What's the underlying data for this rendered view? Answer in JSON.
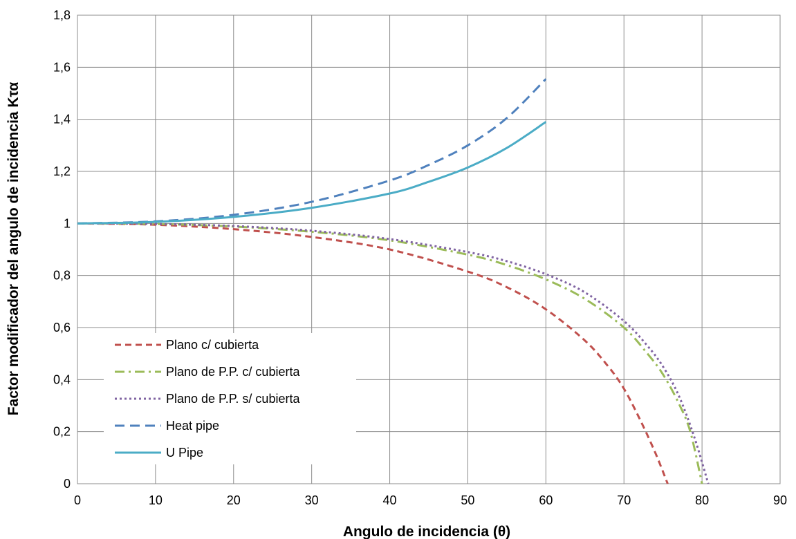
{
  "chart_data": {
    "type": "line",
    "xlabel": "Angulo de incidencia (θ)",
    "ylabel": "Factor modificador del angulo de incidencia Kτα",
    "xlim": [
      0,
      90
    ],
    "ylim": [
      0,
      1.8
    ],
    "x_ticks": [
      0,
      10,
      20,
      30,
      40,
      50,
      60,
      70,
      80,
      90
    ],
    "y_ticks": [
      0,
      0.2,
      0.4,
      0.6,
      0.8,
      1,
      1.2,
      1.4,
      1.6,
      1.8
    ],
    "x_tick_labels": [
      "0",
      "10",
      "20",
      "30",
      "40",
      "50",
      "60",
      "70",
      "80",
      "90"
    ],
    "y_tick_labels": [
      "0",
      "0,2",
      "0,4",
      "0,6",
      "0,8",
      "1",
      "1,2",
      "1,4",
      "1,6",
      "1,8"
    ],
    "grid": true,
    "legend_position": "bottom-left",
    "series": [
      {
        "name": "Plano c/ cubierta",
        "color": "#c0504d",
        "dash": "dash",
        "x": [
          0,
          10,
          20,
          30,
          40,
          50,
          55,
          60,
          65,
          68,
          70,
          72,
          74,
          75.6
        ],
        "y": [
          1.0,
          0.995,
          0.978,
          0.948,
          0.9,
          0.815,
          0.755,
          0.67,
          0.55,
          0.45,
          0.365,
          0.25,
          0.12,
          0.0
        ]
      },
      {
        "name": "Plano de P.P. c/ cubierta",
        "color": "#9bbb59",
        "dash": "dashdot",
        "x": [
          0,
          10,
          20,
          30,
          40,
          50,
          55,
          60,
          65,
          70,
          73,
          75,
          77,
          78.5,
          80
        ],
        "y": [
          1.0,
          0.998,
          0.988,
          0.968,
          0.935,
          0.88,
          0.84,
          0.785,
          0.71,
          0.6,
          0.5,
          0.42,
          0.31,
          0.2,
          0.0
        ]
      },
      {
        "name": "Plano de P.P. s/ cubierta",
        "color": "#8064a2",
        "dash": "dot",
        "x": [
          0,
          10,
          20,
          30,
          40,
          50,
          55,
          60,
          65,
          70,
          73,
          75,
          77,
          79,
          80.8
        ],
        "y": [
          1.0,
          0.998,
          0.99,
          0.972,
          0.94,
          0.89,
          0.855,
          0.805,
          0.735,
          0.625,
          0.53,
          0.45,
          0.34,
          0.18,
          0.0
        ]
      },
      {
        "name": "Heat pipe",
        "color": "#4f81bd",
        "dash": "longdash",
        "x": [
          0,
          10,
          20,
          30,
          40,
          45,
          50,
          55,
          60
        ],
        "y": [
          1.0,
          1.008,
          1.033,
          1.083,
          1.165,
          1.225,
          1.3,
          1.405,
          1.555
        ]
      },
      {
        "name": "U Pipe",
        "color": "#4bacc6",
        "dash": "solid",
        "x": [
          0,
          10,
          20,
          30,
          40,
          45,
          50,
          55,
          60
        ],
        "y": [
          1.0,
          1.006,
          1.025,
          1.06,
          1.115,
          1.16,
          1.215,
          1.29,
          1.39
        ]
      }
    ]
  }
}
